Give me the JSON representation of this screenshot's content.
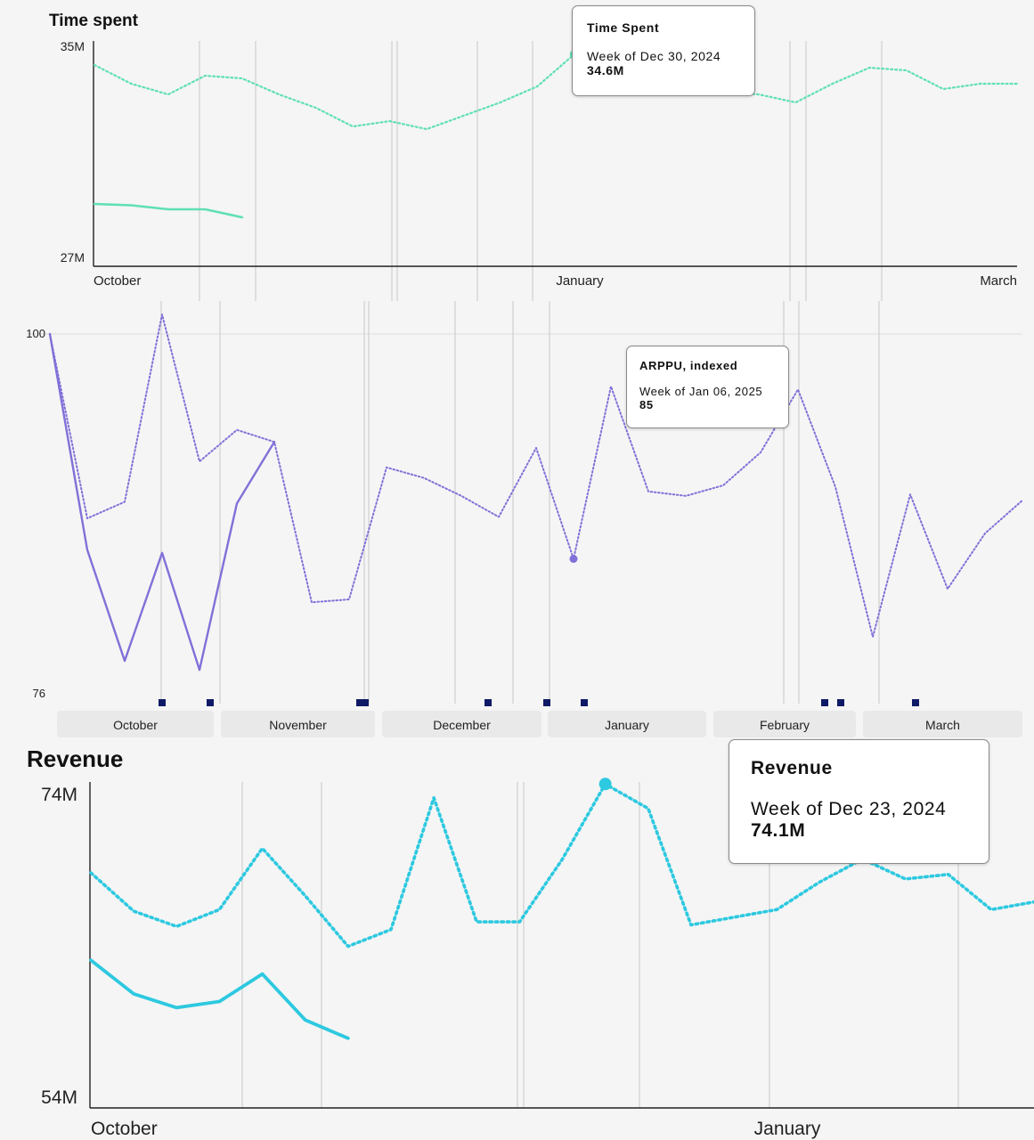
{
  "chart_data": [
    {
      "type": "line",
      "title": "Time spent",
      "y_tick_labels": [
        "35M",
        "27M"
      ],
      "ylim": [
        27,
        35
      ],
      "x_tick_labels": [
        "October",
        "January",
        "March"
      ],
      "grid": "vertical",
      "series": [
        {
          "style": "dotted",
          "x": [
            "2024-09-30",
            "2024-10-07",
            "2024-10-14",
            "2024-10-21",
            "2024-10-28",
            "2024-11-04",
            "2024-11-11",
            "2024-11-18",
            "2024-11-25",
            "2024-12-02",
            "2024-12-09",
            "2024-12-16",
            "2024-12-23",
            "2024-12-30",
            "2025-01-06",
            "2025-01-13",
            "2025-01-20",
            "2025-01-27",
            "2025-02-03",
            "2025-02-10",
            "2025-02-17",
            "2025-02-24",
            "2025-03-03",
            "2025-03-10",
            "2025-03-17",
            "2025-03-24"
          ],
          "values": [
            34.2,
            33.5,
            33.1,
            33.8,
            33.7,
            33.1,
            32.6,
            31.9,
            32.1,
            31.8,
            32.3,
            32.8,
            33.4,
            34.6,
            34.6,
            34.5,
            33.8,
            33.2,
            33.1,
            32.8,
            33.5,
            34.1,
            34,
            33.3,
            33.5,
            33.5
          ]
        },
        {
          "style": "solid",
          "x": [
            "2024-09-30",
            "2024-10-07",
            "2024-10-14",
            "2024-10-21",
            "2024-10-28"
          ],
          "values": [
            29.0,
            28.95,
            28.8,
            28.8,
            28.5
          ]
        }
      ],
      "tooltip": {
        "title": "Time Spent",
        "week": "Week of Dec 30, 2024",
        "value": "34.6M",
        "x": "2024-12-30",
        "y": 34.6
      }
    },
    {
      "type": "line",
      "title": "",
      "y_tick_labels": [
        "100",
        "76"
      ],
      "ylim": [
        76,
        100
      ],
      "x_tick_labels": [
        "October",
        "November",
        "December",
        "January",
        "February",
        "March"
      ],
      "grid": "vertical",
      "series": [
        {
          "style": "dotted",
          "x": [
            "2024-09-30",
            "2024-10-07",
            "2024-10-14",
            "2024-10-21",
            "2024-10-28",
            "2024-11-04",
            "2024-11-11",
            "2024-11-18",
            "2024-11-25",
            "2024-12-02",
            "2024-12-09",
            "2024-12-16",
            "2024-12-23",
            "2024-12-30",
            "2025-01-06",
            "2025-01-13",
            "2025-01-20",
            "2025-01-27",
            "2025-02-03",
            "2025-02-10",
            "2025-02-17",
            "2025-02-24",
            "2025-03-03",
            "2025-03-10",
            "2025-03-17",
            "2025-03-24",
            "2025-03-31"
          ],
          "values": [
            100,
            87.7,
            88.8,
            101.3,
            91.5,
            93.6,
            92.8,
            82.1,
            82.3,
            91.1,
            90.4,
            89.2,
            87.8,
            92.4,
            85,
            96.5,
            89.5,
            89.2,
            89.9,
            92.1,
            96.3,
            89.8,
            79.8,
            89.3,
            83,
            86.7,
            88.9
          ]
        },
        {
          "style": "solid",
          "x": [
            "2024-09-30",
            "2024-10-07",
            "2024-10-14",
            "2024-10-21",
            "2024-10-28",
            "2024-11-04",
            "2024-11-11"
          ],
          "values": [
            100,
            85.6,
            78.2,
            85.4,
            77.6,
            88.7,
            92.8
          ]
        }
      ],
      "markers": [
        "2024-10-21",
        "2024-10-30",
        "2024-11-27",
        "2024-11-28",
        "2024-12-21",
        "2025-01-01",
        "2025-01-08",
        "2025-02-22",
        "2025-02-25",
        "2025-03-11"
      ],
      "tooltip": {
        "title": "ARPPU, indexed",
        "week": "Week of Jan 06, 2025",
        "value": "85",
        "x": "2025-01-06",
        "y": 85
      }
    },
    {
      "type": "line",
      "title": "Revenue",
      "y_tick_labels": [
        "74M",
        "54M"
      ],
      "ylim": [
        54,
        74
      ],
      "x_tick_labels": [
        "October",
        "January"
      ],
      "grid": "vertical",
      "series": [
        {
          "style": "dotted",
          "x": [
            "2024-09-30",
            "2024-10-07",
            "2024-10-14",
            "2024-10-21",
            "2024-10-28",
            "2024-11-04",
            "2024-11-11",
            "2024-11-18",
            "2024-11-25",
            "2024-12-02",
            "2024-12-09",
            "2024-12-16",
            "2024-12-23",
            "2024-12-30",
            "2025-01-06",
            "2025-01-13",
            "2025-01-20",
            "2025-01-27",
            "2025-02-03",
            "2025-02-10",
            "2025-02-17",
            "2025-02-24",
            "2025-03-03"
          ],
          "values": [
            68.3,
            65.8,
            64.8,
            65.9,
            69.9,
            66.8,
            63.5,
            64.6,
            73.2,
            65.1,
            65.1,
            69.2,
            74.1,
            72.5,
            64.9,
            65.4,
            65.9,
            67.7,
            69.2,
            67.9,
            68.2,
            65.9,
            66.4
          ]
        },
        {
          "style": "solid",
          "x": [
            "2024-09-30",
            "2024-10-07",
            "2024-10-14",
            "2024-10-21",
            "2024-10-28",
            "2024-11-04",
            "2024-11-11"
          ],
          "values": [
            62.6,
            60.4,
            59.5,
            59.9,
            61.7,
            58.7,
            57.5
          ]
        }
      ],
      "tooltip": {
        "title": "Revenue",
        "week": "Week of Dec 23, 2024",
        "value": "74.1M",
        "x": "2024-12-23",
        "y": 74.1
      }
    }
  ],
  "colors": {
    "time_spent": "#5fe0b3",
    "arppu": "#8170d8",
    "arppu_marker": "#0f1a66",
    "revenue": "#2dc9e0",
    "grid": "#cfcfcf",
    "axis": "#222222"
  }
}
